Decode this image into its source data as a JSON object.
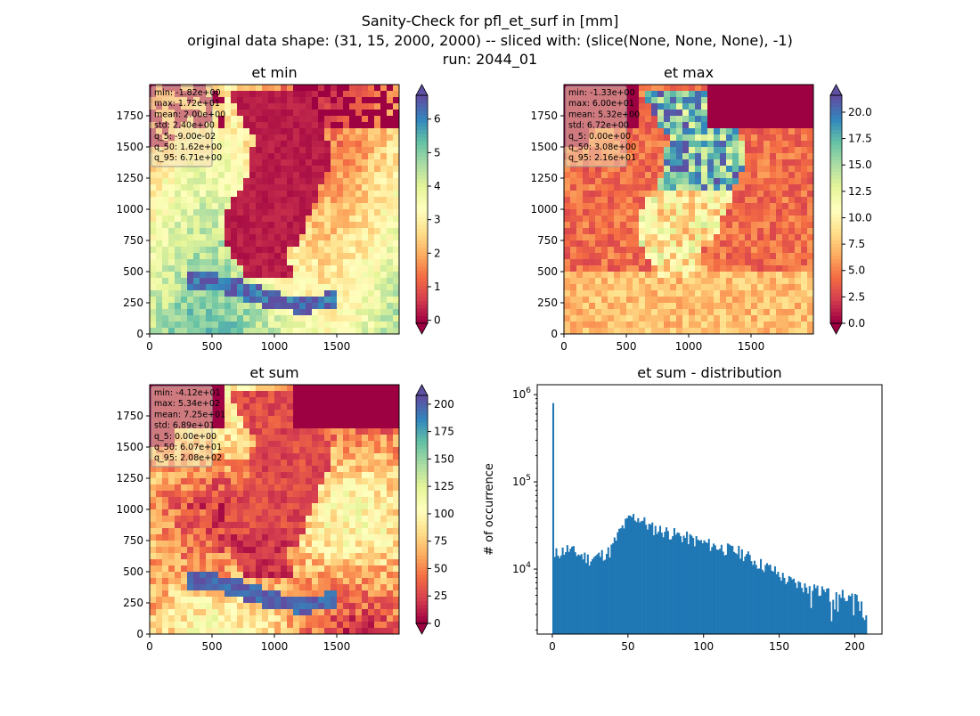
{
  "suptitle": {
    "line1": "Sanity-Check for pfl_et_surf in [mm]",
    "line2": "original data shape: (31, 15, 2000, 2000) -- sliced with: (slice(None, None, None), -1)",
    "line3": "run: 2044_01"
  },
  "colors": {
    "spectral": [
      "#9e0142",
      "#d53e4f",
      "#f46d43",
      "#fdae61",
      "#fee08b",
      "#ffffbf",
      "#e6f598",
      "#abdda4",
      "#66c2a5",
      "#3288bd",
      "#5e4fa2"
    ],
    "hist_bar": "#1f77b4",
    "stats_box": "#f5deb3",
    "axis": "#000000"
  },
  "chart_data": [
    {
      "type": "heatmap",
      "title": "et min",
      "xlim": [
        0,
        2000
      ],
      "ylim": [
        0,
        2000
      ],
      "xticks": [
        "0",
        "500",
        "1000",
        "1500"
      ],
      "yticks": [
        "0",
        "250",
        "500",
        "750",
        "1000",
        "1250",
        "1500",
        "1750"
      ],
      "colorbar": {
        "min": -0.09,
        "max": 6.71,
        "ticks": [
          "0",
          "1",
          "2",
          "3",
          "4",
          "5",
          "6"
        ],
        "extend": "both"
      },
      "stats": [
        "min: -1.82e+00",
        "max: 1.72e+01",
        "mean: 2.00e+00",
        "std: 2.40e+00",
        "q_5: -9.00e-02",
        "q_50: 1.62e+00",
        "q_95: 6.71e+00"
      ]
    },
    {
      "type": "heatmap",
      "title": "et max",
      "xlim": [
        0,
        2000
      ],
      "ylim": [
        0,
        2000
      ],
      "xticks": [
        "0",
        "500",
        "1000",
        "1500"
      ],
      "yticks": [
        "0",
        "250",
        "500",
        "750",
        "1000",
        "1250",
        "1500",
        "1750"
      ],
      "colorbar": {
        "min": 0.0,
        "max": 21.6,
        "ticks": [
          "0.0",
          "2.5",
          "5.0",
          "7.5",
          "10.0",
          "12.5",
          "15.0",
          "17.5",
          "20.0"
        ],
        "extend": "both"
      },
      "stats": [
        "min: -1.33e+00",
        "max: 6.00e+01",
        "mean: 5.32e+00",
        "std: 6.72e+00",
        "q_5: 0.00e+00",
        "q_50: 3.08e+00",
        "q_95: 2.16e+01"
      ]
    },
    {
      "type": "heatmap",
      "title": "et sum",
      "xlim": [
        0,
        2000
      ],
      "ylim": [
        0,
        2000
      ],
      "xticks": [
        "0",
        "500",
        "1000",
        "1500"
      ],
      "yticks": [
        "0",
        "250",
        "500",
        "750",
        "1000",
        "1250",
        "1500",
        "1750"
      ],
      "colorbar": {
        "min": 0.0,
        "max": 208,
        "ticks": [
          "0",
          "25",
          "50",
          "75",
          "100",
          "125",
          "150",
          "175",
          "200"
        ],
        "extend": "both"
      },
      "stats": [
        "min: -4.12e+01",
        "max: 5.34e+02",
        "mean: 7.25e+01",
        "std: 6.89e+01",
        "q_5: 0.00e+00",
        "q_50: 6.07e+01",
        "q_95: 2.08e+02"
      ]
    },
    {
      "type": "bar",
      "title": "et sum - distribution",
      "ylabel": "# of occurrence",
      "yscale": "log",
      "xlim": [
        -10,
        218
      ],
      "ylim": [
        1800,
        1300000
      ],
      "xticks": [
        "0",
        "50",
        "100",
        "150",
        "200"
      ],
      "yticks": [
        "10^4",
        "10^5",
        "10^6"
      ],
      "x": [
        0,
        50,
        100,
        150,
        200,
        207
      ],
      "y": [
        800000,
        38000,
        20000,
        9000,
        5000,
        3000
      ],
      "anchors": [
        [
          0,
          800000
        ],
        [
          1,
          11000
        ],
        [
          2,
          15000
        ],
        [
          10,
          17000
        ],
        [
          25,
          13000
        ],
        [
          38,
          16000
        ],
        [
          45,
          28000
        ],
        [
          52,
          40000
        ],
        [
          58,
          38000
        ],
        [
          65,
          30000
        ],
        [
          75,
          27000
        ],
        [
          85,
          24000
        ],
        [
          100,
          20000
        ],
        [
          115,
          17000
        ],
        [
          125,
          15500
        ],
        [
          135,
          12000
        ],
        [
          145,
          10000
        ],
        [
          155,
          7500
        ],
        [
          170,
          6000
        ],
        [
          185,
          5000
        ],
        [
          200,
          5000
        ],
        [
          207,
          3000
        ]
      ]
    }
  ]
}
